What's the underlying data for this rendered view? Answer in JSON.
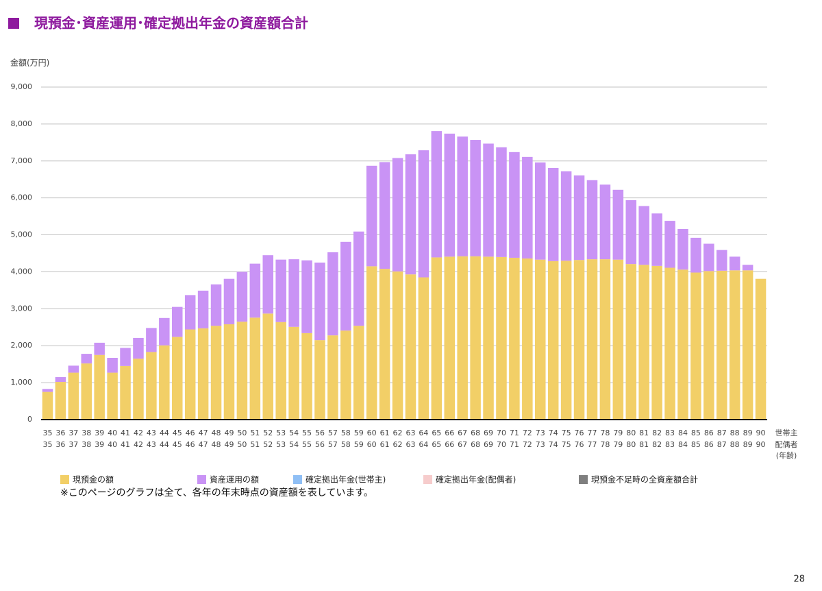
{
  "chart_data": {
    "type": "stacked_bar",
    "title": "現預金･資産運用･確定拠出年金の資産額合計",
    "y_label": "金額(万円)",
    "x_row_labels": [
      "世帯主",
      "配偶者"
    ],
    "x_unit": "(年齢)",
    "categories": [
      "35",
      "36",
      "37",
      "38",
      "39",
      "40",
      "41",
      "42",
      "43",
      "44",
      "45",
      "46",
      "47",
      "48",
      "49",
      "50",
      "51",
      "52",
      "53",
      "54",
      "55",
      "56",
      "57",
      "58",
      "59",
      "60",
      "61",
      "62",
      "63",
      "64",
      "65",
      "66",
      "67",
      "68",
      "69",
      "70",
      "71",
      "72",
      "73",
      "74",
      "75",
      "76",
      "77",
      "78",
      "79",
      "80",
      "81",
      "82",
      "83",
      "84",
      "85",
      "86",
      "87",
      "88",
      "89",
      "90"
    ],
    "categories_spouse": [
      "35",
      "36",
      "37",
      "38",
      "39",
      "40",
      "41",
      "42",
      "43",
      "44",
      "45",
      "46",
      "47",
      "48",
      "49",
      "50",
      "51",
      "52",
      "53",
      "54",
      "55",
      "56",
      "57",
      "58",
      "59",
      "60",
      "61",
      "62",
      "63",
      "64",
      "65",
      "66",
      "67",
      "68",
      "69",
      "70",
      "71",
      "72",
      "73",
      "74",
      "75",
      "76",
      "77",
      "78",
      "79",
      "80",
      "81",
      "82",
      "83",
      "84",
      "85",
      "86",
      "87",
      "88",
      "89",
      "90"
    ],
    "series": [
      {
        "name": "現預金の額",
        "color": "#f2cf67",
        "values": [
          750,
          1020,
          1270,
          1520,
          1750,
          1270,
          1450,
          1650,
          1830,
          2010,
          2240,
          2440,
          2470,
          2540,
          2580,
          2650,
          2760,
          2870,
          2640,
          2510,
          2340,
          2150,
          2280,
          2410,
          2540,
          4150,
          4080,
          4010,
          3930,
          3850,
          4390,
          4410,
          4420,
          4420,
          4410,
          4400,
          4380,
          4360,
          4330,
          4290,
          4300,
          4320,
          4340,
          4340,
          4330,
          4210,
          4190,
          4160,
          4110,
          4060,
          3980,
          4020,
          4030,
          4040,
          4040,
          3810
        ]
      },
      {
        "name": "資産運用の額",
        "color": "#c993f5",
        "values": [
          80,
          130,
          190,
          260,
          330,
          400,
          490,
          560,
          650,
          740,
          810,
          930,
          1020,
          1120,
          1230,
          1350,
          1460,
          1580,
          1690,
          1830,
          1970,
          2100,
          2250,
          2400,
          2550,
          2720,
          2890,
          3070,
          3250,
          3440,
          3420,
          3330,
          3240,
          3150,
          3060,
          2970,
          2860,
          2750,
          2630,
          2520,
          2420,
          2290,
          2140,
          2020,
          1890,
          1730,
          1590,
          1420,
          1270,
          1100,
          940,
          740,
          560,
          370,
          150,
          0
        ]
      },
      {
        "name": "確定拠出年金(世帯主)",
        "color": "#8fbff5",
        "values": [
          0,
          0,
          0,
          0,
          0,
          0,
          0,
          0,
          0,
          0,
          0,
          0,
          0,
          0,
          0,
          0,
          0,
          0,
          0,
          0,
          0,
          0,
          0,
          0,
          0,
          0,
          0,
          0,
          0,
          0,
          0,
          0,
          0,
          0,
          0,
          0,
          0,
          0,
          0,
          0,
          0,
          0,
          0,
          0,
          0,
          0,
          0,
          0,
          0,
          0,
          0,
          0,
          0,
          0,
          0,
          0
        ]
      },
      {
        "name": "確定拠出年金(配偶者)",
        "color": "#f6cccc",
        "values": [
          0,
          0,
          0,
          0,
          0,
          0,
          0,
          0,
          0,
          0,
          0,
          0,
          0,
          0,
          0,
          0,
          0,
          0,
          0,
          0,
          0,
          0,
          0,
          0,
          0,
          0,
          0,
          0,
          0,
          0,
          0,
          0,
          0,
          0,
          0,
          0,
          0,
          0,
          0,
          0,
          0,
          0,
          0,
          0,
          0,
          0,
          0,
          0,
          0,
          0,
          0,
          0,
          0,
          0,
          0,
          0
        ]
      },
      {
        "name": "現預金不足時の全資産額合計",
        "color": "#7f7f7f",
        "values": [
          0,
          0,
          0,
          0,
          0,
          0,
          0,
          0,
          0,
          0,
          0,
          0,
          0,
          0,
          0,
          0,
          0,
          0,
          0,
          0,
          0,
          0,
          0,
          0,
          0,
          0,
          0,
          0,
          0,
          0,
          0,
          0,
          0,
          0,
          0,
          0,
          0,
          0,
          0,
          0,
          0,
          0,
          0,
          0,
          0,
          0,
          0,
          0,
          0,
          0,
          0,
          0,
          0,
          0,
          0,
          0
        ]
      }
    ],
    "ylim": [
      0,
      9000
    ],
    "yticks": [
      0,
      {
        "value": 1000,
        "label": "1,000"
      },
      {
        "value": 2000,
        "label": "2,000"
      },
      {
        "value": 3000,
        "label": "3,000"
      },
      {
        "value": 4000,
        "label": "4,000"
      },
      {
        "value": 5000,
        "label": "5,000"
      },
      {
        "value": 6000,
        "label": "6,000"
      },
      {
        "value": 7000,
        "label": "7,000"
      },
      {
        "value": 8000,
        "label": "8,000"
      },
      {
        "value": 9000,
        "label": "9,000"
      }
    ],
    "grid": true,
    "legend": "bottom",
    "note": "※このページのグラフは全て、各年の年末時点の資産額を表しています。",
    "page_number": "28"
  }
}
